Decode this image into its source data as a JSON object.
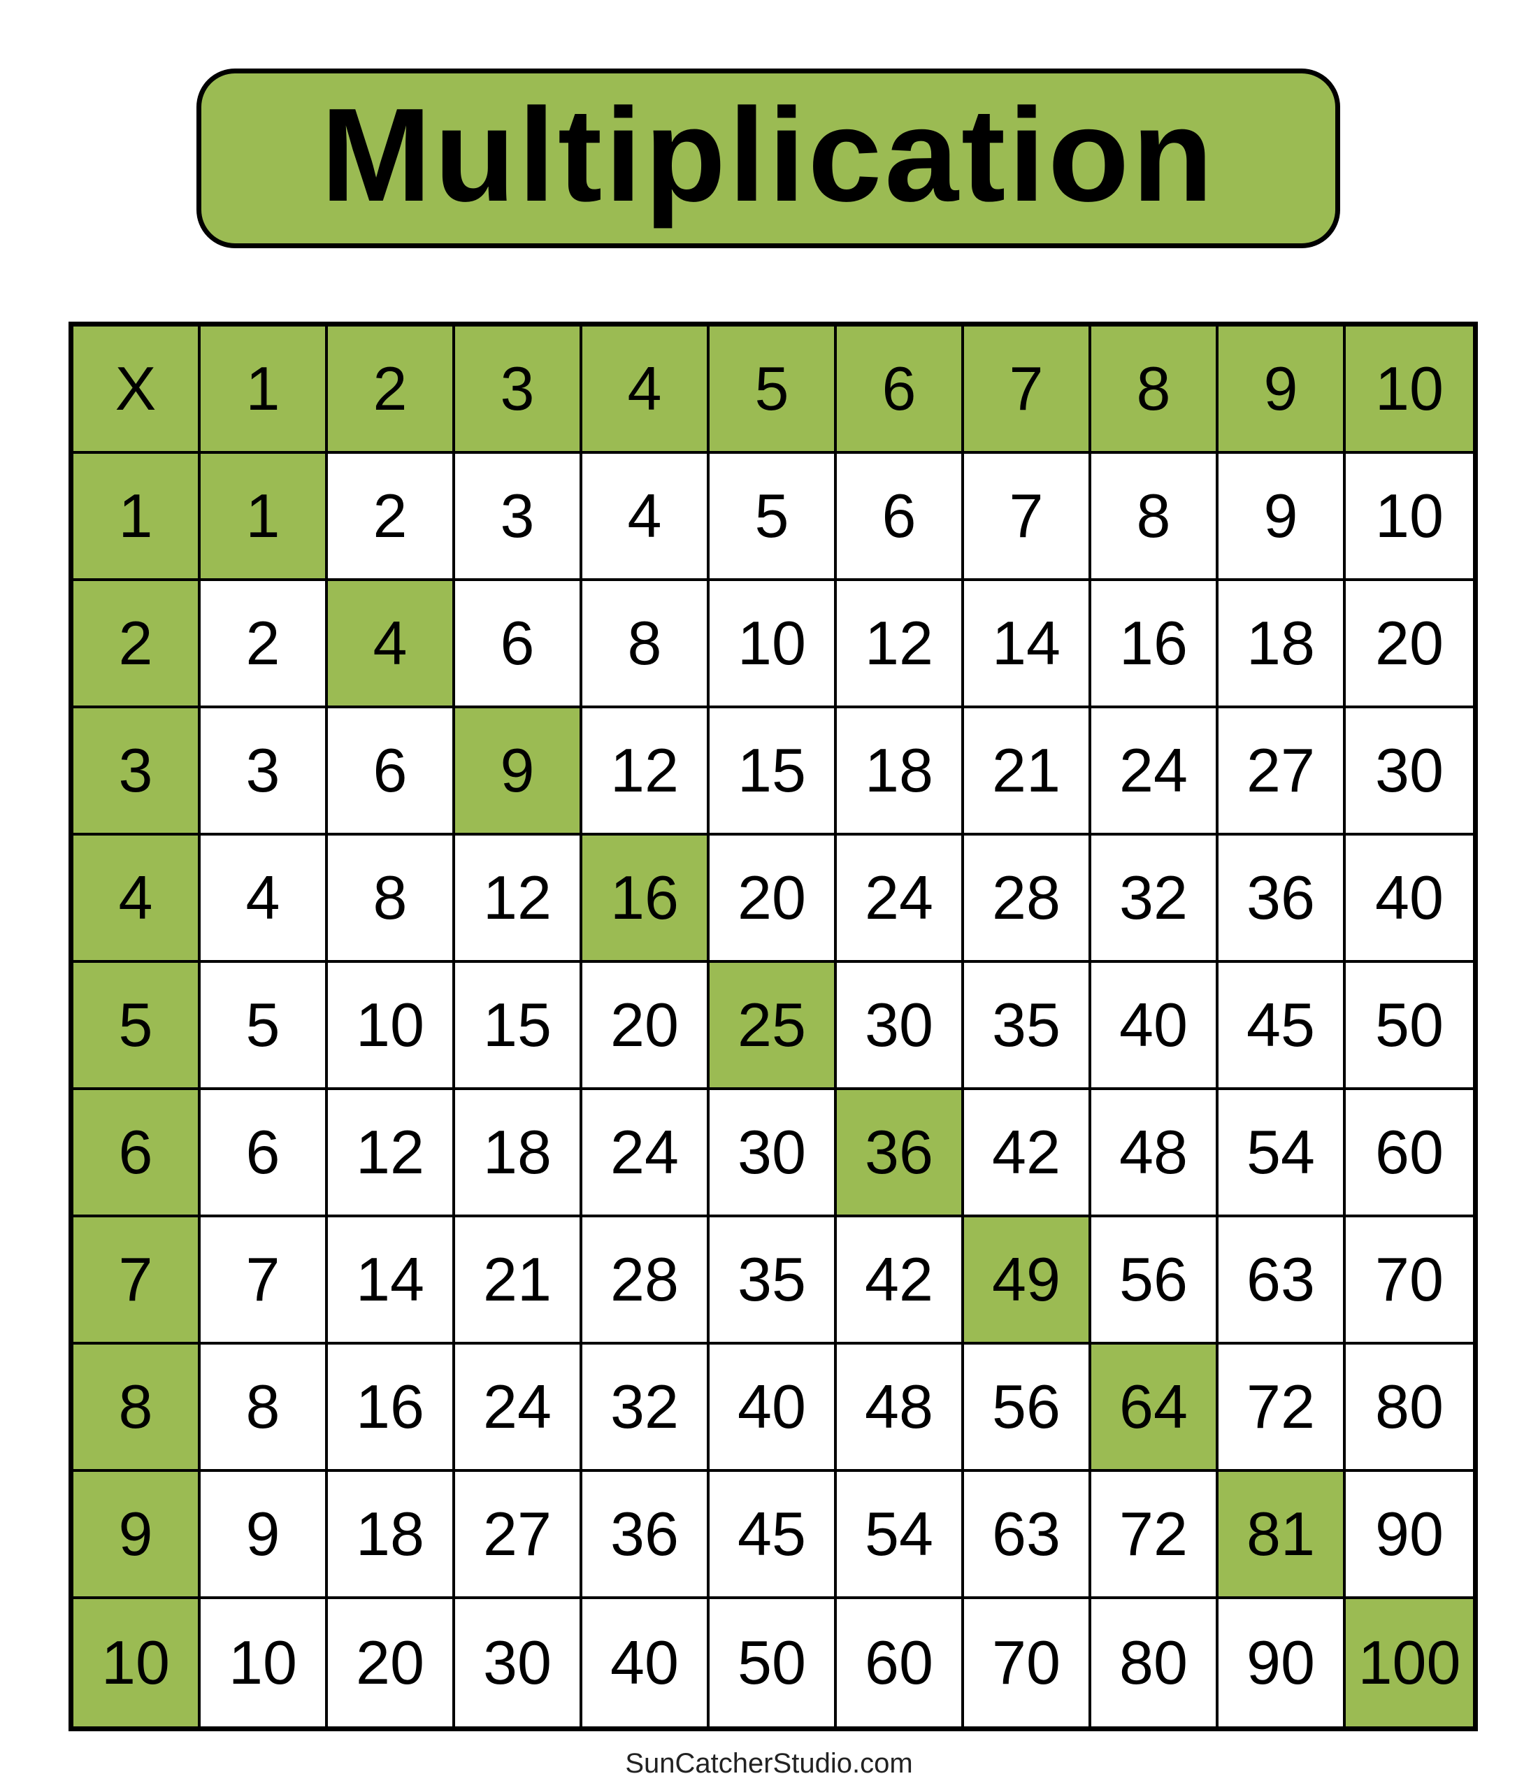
{
  "title": "Multiplication",
  "header_row": [
    "X",
    "1",
    "2",
    "3",
    "4",
    "5",
    "6",
    "7",
    "8",
    "9",
    "10"
  ],
  "rows": [
    [
      "1",
      "1",
      "2",
      "3",
      "4",
      "5",
      "6",
      "7",
      "8",
      "9",
      "10"
    ],
    [
      "2",
      "2",
      "4",
      "6",
      "8",
      "10",
      "12",
      "14",
      "16",
      "18",
      "20"
    ],
    [
      "3",
      "3",
      "6",
      "9",
      "12",
      "15",
      "18",
      "21",
      "24",
      "27",
      "30"
    ],
    [
      "4",
      "4",
      "8",
      "12",
      "16",
      "20",
      "24",
      "28",
      "32",
      "36",
      "40"
    ],
    [
      "5",
      "5",
      "10",
      "15",
      "20",
      "25",
      "30",
      "35",
      "40",
      "45",
      "50"
    ],
    [
      "6",
      "6",
      "12",
      "18",
      "24",
      "30",
      "36",
      "42",
      "48",
      "54",
      "60"
    ],
    [
      "7",
      "7",
      "14",
      "21",
      "28",
      "35",
      "42",
      "49",
      "56",
      "63",
      "70"
    ],
    [
      "8",
      "8",
      "16",
      "24",
      "32",
      "40",
      "48",
      "56",
      "64",
      "72",
      "80"
    ],
    [
      "9",
      "9",
      "18",
      "27",
      "36",
      "45",
      "54",
      "63",
      "72",
      "81",
      "90"
    ],
    [
      "10",
      "10",
      "20",
      "30",
      "40",
      "50",
      "60",
      "70",
      "80",
      "90",
      "100"
    ]
  ],
  "colors": {
    "accent": "#9bbb53",
    "border": "#000000"
  },
  "footer": "SunCatcherStudio.com"
}
